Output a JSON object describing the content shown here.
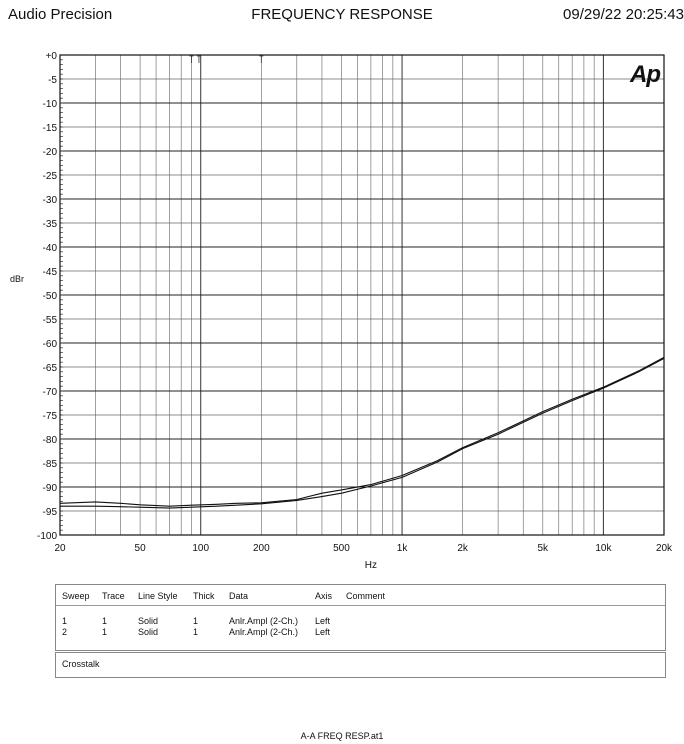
{
  "header": {
    "left": "Audio Precision",
    "center": "FREQUENCY RESPONSE",
    "right": "09/29/22 20:25:43"
  },
  "chart_data": {
    "type": "line",
    "title": "FREQUENCY RESPONSE",
    "xlabel": "Hz",
    "ylabel": "dBr",
    "x_scale": "log",
    "xlim": [
      20,
      20000
    ],
    "ylim": [
      -100,
      0
    ],
    "grid": true,
    "x_ticks": [
      "20",
      "50",
      "100",
      "200",
      "500",
      "1k",
      "2k",
      "5k",
      "10k",
      "20k"
    ],
    "y_ticks": [
      "+0",
      "-5",
      "-10",
      "-15",
      "-20",
      "-25",
      "-30",
      "-35",
      "-40",
      "-45",
      "-50",
      "-55",
      "-60",
      "-65",
      "-70",
      "-75",
      "-80",
      "-85",
      "-90",
      "-95",
      "-100"
    ],
    "logo": "Ap",
    "series": [
      {
        "x": [
          20,
          30,
          40,
          50,
          70,
          90,
          120,
          150,
          200,
          300,
          400,
          500,
          700,
          1000,
          1500,
          2000,
          3000,
          5000,
          7000,
          10000,
          15000,
          20000
        ],
        "y": [
          -94.0,
          -94.0,
          -94.1,
          -94.2,
          -94.4,
          -94.2,
          -94.0,
          -93.8,
          -93.5,
          -92.8,
          -92.0,
          -91.3,
          -89.8,
          -88.0,
          -84.8,
          -82.0,
          -79.0,
          -74.6,
          -72.0,
          -69.4,
          -66.0,
          -63.2
        ]
      },
      {
        "x": [
          20,
          30,
          40,
          50,
          70,
          90,
          120,
          150,
          200,
          300,
          400,
          500,
          700,
          1000,
          1500,
          2000,
          3000,
          5000,
          7000,
          10000,
          15000,
          20000
        ],
        "y": [
          -93.4,
          -93.1,
          -93.4,
          -93.7,
          -94.0,
          -93.8,
          -93.6,
          -93.4,
          -93.3,
          -92.6,
          -91.3,
          -90.6,
          -89.5,
          -87.6,
          -84.5,
          -81.8,
          -78.7,
          -74.3,
          -71.7,
          -69.2,
          -65.8,
          -63.0
        ]
      }
    ]
  },
  "legend": {
    "headers": [
      "Sweep",
      "Trace",
      "Line Style",
      "Thick",
      "Data",
      "Axis",
      "Comment"
    ],
    "rows": [
      [
        "1",
        "1",
        "Solid",
        "1",
        "Anlr.Ampl (2-Ch.)",
        "Left",
        ""
      ],
      [
        "2",
        "1",
        "Solid",
        "1",
        "Anlr.Ampl (2-Ch.)",
        "Left",
        ""
      ]
    ]
  },
  "comment": "Crosstalk",
  "footer": "A-A FREQ RESP.at1"
}
